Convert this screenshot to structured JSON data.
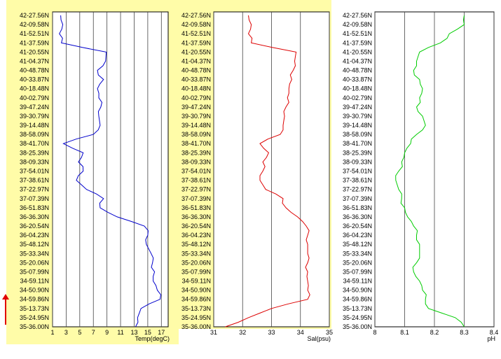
{
  "chart_data": [
    {
      "type": "line",
      "xlabel": "Temp(degC)",
      "xlim": [
        1,
        18
      ],
      "xticks": [
        "1",
        "3",
        "5",
        "7",
        "9",
        "11",
        "13",
        "15",
        "17"
      ],
      "color": "#0000cc",
      "y_categories": [
        "42-27.56N",
        "42-09.58N",
        "41-52.51N",
        "41-37.59N",
        "41-20.55N",
        "41-04.37N",
        "40-48.78N",
        "40-33.87N",
        "40-18.48N",
        "40-02.79N",
        "39-47.24N",
        "39-30.79N",
        "39-14.48N",
        "38-58.09N",
        "38-41.70N",
        "38-25.39N",
        "38-09.33N",
        "37-54.01N",
        "37-38.61N",
        "37-22.97N",
        "37-07.39N",
        "36-51.83N",
        "36-36.30N",
        "36-20.54N",
        "36-04.23N",
        "35-48.12N",
        "35-33.34N",
        "35-20.06N",
        "35-07.99N",
        "34-59.11N",
        "34-50.90N",
        "34-59.86N",
        "35-13.73N",
        "35-24.95N",
        "35-36.00N"
      ],
      "series": [
        {
          "values": [
            2.2,
            2.5,
            2.0,
            2.3,
            8.9,
            8.8,
            7.6,
            8.5,
            7.6,
            7.8,
            8.1,
            7.8,
            8.0,
            7.0,
            2.6,
            5.5,
            4.8,
            5.5,
            4.5,
            6.0,
            8.5,
            8.0,
            10.5,
            14.5,
            15.0,
            14.8,
            15.5,
            15.7,
            16.0,
            15.8,
            16.4,
            16.8,
            14.0,
            13.5,
            13.2
          ]
        }
      ]
    },
    {
      "type": "line",
      "xlabel": "Sal(psu)",
      "xlim": [
        31,
        35
      ],
      "xticks": [
        "31",
        "32",
        "33",
        "34",
        "35"
      ],
      "color": "#dd0000",
      "y_categories": [
        "42-27.56N",
        "42-09.58N",
        "41-52.51N",
        "41-37.59N",
        "41-20.55N",
        "41-04.37N",
        "40-48.78N",
        "40-33.87N",
        "40-18.48N",
        "40-02.79N",
        "39-47.24N",
        "39-30.79N",
        "39-14.48N",
        "38-58.09N",
        "38-41.70N",
        "38-25.39N",
        "38-09.33N",
        "37-54.01N",
        "37-38.61N",
        "37-22.97N",
        "37-07.39N",
        "36-51.83N",
        "36-36.30N",
        "36-20.54N",
        "36-04.23N",
        "35-48.12N",
        "35-33.34N",
        "35-20.06N",
        "35-07.99N",
        "34-59.11N",
        "34-50.90N",
        "34-59.86N",
        "35-13.73N",
        "35-24.95N",
        "35-36.00N"
      ],
      "series": [
        {
          "values": [
            32.2,
            32.3,
            32.2,
            32.3,
            33.85,
            33.8,
            33.75,
            33.7,
            33.6,
            33.55,
            33.5,
            33.45,
            33.4,
            33.3,
            32.6,
            32.9,
            32.7,
            32.7,
            32.6,
            32.8,
            33.4,
            33.5,
            33.9,
            34.2,
            34.25,
            34.25,
            34.25,
            34.25,
            34.25,
            34.25,
            34.25,
            34.25,
            33.0,
            32.2,
            31.4
          ]
        }
      ]
    },
    {
      "type": "line",
      "xlabel": "pH",
      "xlim": [
        8,
        8.4
      ],
      "xticks": [
        "8",
        "8.1",
        "8.2",
        "8.3",
        "8.4"
      ],
      "color": "#00cc00",
      "y_categories": [
        "42-27.56N",
        "42-09.58N",
        "41-52.51N",
        "41-37.59N",
        "41-20.55N",
        "41-04.37N",
        "40-48.78N",
        "40-33.87N",
        "40-18.48N",
        "40-02.79N",
        "39-47.24N",
        "39-30.79N",
        "39-14.48N",
        "38-58.09N",
        "38-41.70N",
        "38-25.39N",
        "38-09.33N",
        "37-54.01N",
        "37-38.61N",
        "37-22.97N",
        "37-07.39N",
        "36-51.83N",
        "36-36.30N",
        "36-20.54N",
        "36-04.23N",
        "35-48.12N",
        "35-33.34N",
        "35-20.06N",
        "35-07.99N",
        "34-59.11N",
        "34-50.90N",
        "34-59.86N",
        "35-13.73N",
        "35-24.95N",
        "35-36.00N"
      ],
      "series": [
        {
          "values": [
            8.3,
            8.3,
            8.25,
            8.22,
            8.15,
            8.14,
            8.13,
            8.15,
            8.16,
            8.15,
            8.14,
            8.16,
            8.17,
            8.14,
            8.12,
            8.1,
            8.09,
            8.08,
            8.07,
            8.08,
            8.09,
            8.1,
            8.11,
            8.13,
            8.14,
            8.15,
            8.15,
            8.14,
            8.13,
            8.15,
            8.16,
            8.17,
            8.18,
            8.27,
            8.3
          ]
        }
      ]
    }
  ]
}
